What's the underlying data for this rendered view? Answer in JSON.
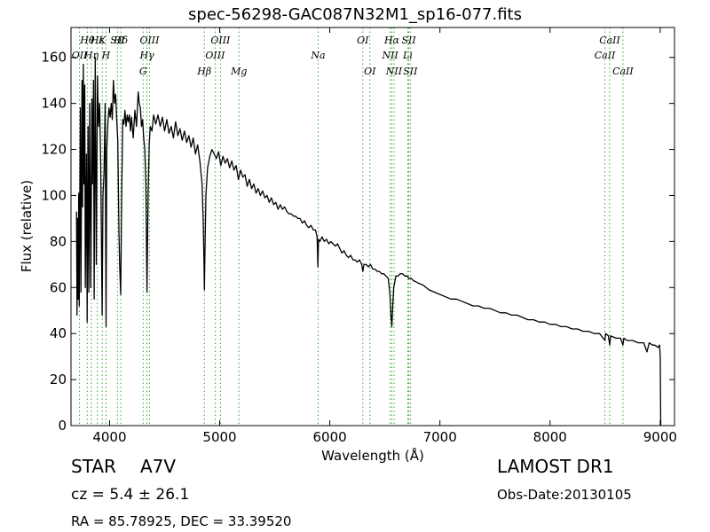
{
  "chart_data": {
    "type": "line",
    "title": "spec-56298-GAC087N32M1_sp16-077.fits",
    "xlabel": "Wavelength (Å)",
    "ylabel": "Flux (relative)",
    "xlim": [
      3650,
      9130
    ],
    "ylim": [
      0,
      173
    ],
    "xticks": [
      4000,
      5000,
      6000,
      7000,
      8000,
      9000
    ],
    "yticks": [
      0,
      20,
      40,
      60,
      80,
      100,
      120,
      140,
      160
    ],
    "grid": false,
    "line_color": "#000000",
    "marker_color": "#33aa33",
    "series": [
      {
        "points": [
          [
            3700,
            93
          ],
          [
            3705,
            48
          ],
          [
            3710,
            90
          ],
          [
            3715,
            55
          ],
          [
            3720,
            101
          ],
          [
            3725,
            52
          ],
          [
            3735,
            138
          ],
          [
            3740,
            58
          ],
          [
            3750,
            150
          ],
          [
            3755,
            95
          ],
          [
            3762,
            157
          ],
          [
            3768,
            105
          ],
          [
            3775,
            148
          ],
          [
            3780,
            60
          ],
          [
            3790,
            118
          ],
          [
            3797,
            45
          ],
          [
            3805,
            130
          ],
          [
            3812,
            58
          ],
          [
            3820,
            140
          ],
          [
            3830,
            60
          ],
          [
            3840,
            142
          ],
          [
            3845,
            105
          ],
          [
            3855,
            150
          ],
          [
            3860,
            55
          ],
          [
            3870,
            160
          ],
          [
            3880,
            70
          ],
          [
            3890,
            152
          ],
          [
            3900,
            130
          ],
          [
            3910,
            140
          ],
          [
            3920,
            113
          ],
          [
            3933,
            48
          ],
          [
            3940,
            100
          ],
          [
            3950,
            110
          ],
          [
            3960,
            140
          ],
          [
            3968,
            43
          ],
          [
            3975,
            120
          ],
          [
            3985,
            132
          ],
          [
            3995,
            138
          ],
          [
            4005,
            134
          ],
          [
            4015,
            140
          ],
          [
            4025,
            133
          ],
          [
            4035,
            150
          ],
          [
            4045,
            140
          ],
          [
            4055,
            144
          ],
          [
            4065,
            133
          ],
          [
            4075,
            124
          ],
          [
            4085,
            85
          ],
          [
            4092,
            70
          ],
          [
            4101,
            57
          ],
          [
            4110,
            100
          ],
          [
            4120,
            133
          ],
          [
            4130,
            131
          ],
          [
            4140,
            137
          ],
          [
            4150,
            130
          ],
          [
            4160,
            135
          ],
          [
            4170,
            132
          ],
          [
            4180,
            135
          ],
          [
            4190,
            128
          ],
          [
            4200,
            134
          ],
          [
            4215,
            125
          ],
          [
            4230,
            137
          ],
          [
            4245,
            130
          ],
          [
            4260,
            145
          ],
          [
            4270,
            140
          ],
          [
            4280,
            138
          ],
          [
            4290,
            130
          ],
          [
            4300,
            133
          ],
          [
            4310,
            125
          ],
          [
            4320,
            120
          ],
          [
            4330,
            105
          ],
          [
            4340,
            58
          ],
          [
            4350,
            100
          ],
          [
            4360,
            122
          ],
          [
            4370,
            130
          ],
          [
            4385,
            128
          ],
          [
            4400,
            135
          ],
          [
            4420,
            131
          ],
          [
            4440,
            135
          ],
          [
            4460,
            130
          ],
          [
            4480,
            134
          ],
          [
            4500,
            128
          ],
          [
            4520,
            133
          ],
          [
            4540,
            127
          ],
          [
            4560,
            130
          ],
          [
            4580,
            125
          ],
          [
            4600,
            132
          ],
          [
            4620,
            126
          ],
          [
            4640,
            129
          ],
          [
            4660,
            124
          ],
          [
            4680,
            128
          ],
          [
            4700,
            123
          ],
          [
            4720,
            126
          ],
          [
            4740,
            121
          ],
          [
            4760,
            125
          ],
          [
            4780,
            118
          ],
          [
            4800,
            122
          ],
          [
            4820,
            115
          ],
          [
            4840,
            105
          ],
          [
            4850,
            90
          ],
          [
            4858,
            70
          ],
          [
            4861,
            59
          ],
          [
            4865,
            72
          ],
          [
            4875,
            100
          ],
          [
            4890,
            112
          ],
          [
            4910,
            117
          ],
          [
            4930,
            120
          ],
          [
            4950,
            118
          ],
          [
            4970,
            116
          ],
          [
            4990,
            119
          ],
          [
            5010,
            113
          ],
          [
            5030,
            117
          ],
          [
            5050,
            114
          ],
          [
            5070,
            116
          ],
          [
            5090,
            112
          ],
          [
            5110,
            115
          ],
          [
            5130,
            111
          ],
          [
            5150,
            113
          ],
          [
            5170,
            107
          ],
          [
            5190,
            111
          ],
          [
            5210,
            108
          ],
          [
            5230,
            109
          ],
          [
            5250,
            104
          ],
          [
            5270,
            107
          ],
          [
            5290,
            103
          ],
          [
            5310,
            105
          ],
          [
            5330,
            101
          ],
          [
            5350,
            103
          ],
          [
            5370,
            100
          ],
          [
            5390,
            102
          ],
          [
            5410,
            99
          ],
          [
            5430,
            100
          ],
          [
            5450,
            97
          ],
          [
            5470,
            99
          ],
          [
            5490,
            96
          ],
          [
            5510,
            97
          ],
          [
            5530,
            94
          ],
          [
            5550,
            96
          ],
          [
            5570,
            94
          ],
          [
            5590,
            95
          ],
          [
            5610,
            93
          ],
          [
            5630,
            92
          ],
          [
            5650,
            92
          ],
          [
            5670,
            91
          ],
          [
            5690,
            91
          ],
          [
            5710,
            90
          ],
          [
            5730,
            90
          ],
          [
            5750,
            88
          ],
          [
            5770,
            89
          ],
          [
            5790,
            87
          ],
          [
            5810,
            86
          ],
          [
            5830,
            87
          ],
          [
            5850,
            85
          ],
          [
            5870,
            85
          ],
          [
            5885,
            82
          ],
          [
            5892,
            69
          ],
          [
            5898,
            81
          ],
          [
            5910,
            80
          ],
          [
            5930,
            82
          ],
          [
            5950,
            80
          ],
          [
            5970,
            81
          ],
          [
            5990,
            79
          ],
          [
            6010,
            80
          ],
          [
            6030,
            79
          ],
          [
            6050,
            78
          ],
          [
            6070,
            79
          ],
          [
            6090,
            77
          ],
          [
            6110,
            75
          ],
          [
            6130,
            76
          ],
          [
            6150,
            74
          ],
          [
            6170,
            73
          ],
          [
            6190,
            74
          ],
          [
            6210,
            72
          ],
          [
            6230,
            72
          ],
          [
            6250,
            71
          ],
          [
            6270,
            72
          ],
          [
            6290,
            70
          ],
          [
            6300,
            67
          ],
          [
            6310,
            70
          ],
          [
            6330,
            70
          ],
          [
            6350,
            69
          ],
          [
            6370,
            70
          ],
          [
            6390,
            68
          ],
          [
            6410,
            68
          ],
          [
            6430,
            67
          ],
          [
            6450,
            67
          ],
          [
            6470,
            66
          ],
          [
            6490,
            66
          ],
          [
            6510,
            65
          ],
          [
            6530,
            64
          ],
          [
            6545,
            58
          ],
          [
            6555,
            48
          ],
          [
            6563,
            43
          ],
          [
            6570,
            50
          ],
          [
            6580,
            60
          ],
          [
            6600,
            65
          ],
          [
            6620,
            65
          ],
          [
            6640,
            66
          ],
          [
            6660,
            66
          ],
          [
            6680,
            65
          ],
          [
            6700,
            65
          ],
          [
            6720,
            64
          ],
          [
            6740,
            64
          ],
          [
            6760,
            63
          ],
          [
            6800,
            62
          ],
          [
            6850,
            61
          ],
          [
            6900,
            59
          ],
          [
            6950,
            58
          ],
          [
            7000,
            57
          ],
          [
            7050,
            56
          ],
          [
            7100,
            55
          ],
          [
            7150,
            55
          ],
          [
            7200,
            54
          ],
          [
            7250,
            53
          ],
          [
            7300,
            52
          ],
          [
            7350,
            52
          ],
          [
            7400,
            51
          ],
          [
            7450,
            51
          ],
          [
            7500,
            50
          ],
          [
            7550,
            49
          ],
          [
            7600,
            49
          ],
          [
            7650,
            48
          ],
          [
            7700,
            48
          ],
          [
            7750,
            47
          ],
          [
            7800,
            46
          ],
          [
            7850,
            46
          ],
          [
            7900,
            45
          ],
          [
            7950,
            45
          ],
          [
            8000,
            44
          ],
          [
            8050,
            44
          ],
          [
            8100,
            43
          ],
          [
            8150,
            43
          ],
          [
            8200,
            42
          ],
          [
            8250,
            42
          ],
          [
            8300,
            41
          ],
          [
            8350,
            41
          ],
          [
            8400,
            40
          ],
          [
            8450,
            40
          ],
          [
            8498,
            37
          ],
          [
            8505,
            40
          ],
          [
            8530,
            39
          ],
          [
            8542,
            35
          ],
          [
            8550,
            39
          ],
          [
            8600,
            38
          ],
          [
            8640,
            38
          ],
          [
            8662,
            35
          ],
          [
            8670,
            38
          ],
          [
            8700,
            37
          ],
          [
            8750,
            37
          ],
          [
            8800,
            36
          ],
          [
            8850,
            36
          ],
          [
            8880,
            32
          ],
          [
            8900,
            36
          ],
          [
            8930,
            35
          ],
          [
            8950,
            35
          ],
          [
            8980,
            34
          ],
          [
            8995,
            35
          ],
          [
            9000,
            30
          ],
          [
            9005,
            0
          ]
        ]
      }
    ],
    "line_markers": [
      {
        "label": "OII",
        "wl": 3727,
        "row": 2
      },
      {
        "label": "Hθ",
        "wl": 3798,
        "row": 1
      },
      {
        "label": "Hη",
        "wl": 3835,
        "row": 2
      },
      {
        "label": "Hε",
        "wl": 3889,
        "row": 1
      },
      {
        "label": "K",
        "wl": 3934,
        "row": 1
      },
      {
        "label": "H",
        "wl": 3968,
        "row": 2
      },
      {
        "label": "SII",
        "wl": 4072,
        "row": 1
      },
      {
        "label": "Hδ",
        "wl": 4102,
        "row": 1
      },
      {
        "label": "G",
        "wl": 4305,
        "row": 3
      },
      {
        "label": "Hγ",
        "wl": 4340,
        "row": 2
      },
      {
        "label": "OIII",
        "wl": 4363,
        "row": 1
      },
      {
        "label": "Hβ",
        "wl": 4861,
        "row": 3
      },
      {
        "label": "OIII",
        "wl": 4959,
        "row": 2
      },
      {
        "label": "OIII",
        "wl": 5007,
        "row": 1
      },
      {
        "label": "Mg",
        "wl": 5175,
        "row": 3
      },
      {
        "label": "Na",
        "wl": 5894,
        "row": 2
      },
      {
        "label": "OI",
        "wl": 6300,
        "row": 1
      },
      {
        "label": "OI",
        "wl": 6364,
        "row": 3
      },
      {
        "label": "NII",
        "wl": 6548,
        "row": 2
      },
      {
        "label": "Hα",
        "wl": 6563,
        "row": 1
      },
      {
        "label": "NII",
        "wl": 6583,
        "row": 3
      },
      {
        "label": "SII",
        "wl": 6717,
        "row": 1
      },
      {
        "label": "Li",
        "wl": 6708,
        "row": 2
      },
      {
        "label": "SII",
        "wl": 6731,
        "row": 3
      },
      {
        "label": "CaII",
        "wl": 8498,
        "row": 2
      },
      {
        "label": "CaII",
        "wl": 8542,
        "row": 1
      },
      {
        "label": "CaII",
        "wl": 8662,
        "row": 3
      }
    ]
  },
  "footer": {
    "class_label": "STAR",
    "subclass_label": "A7V",
    "cz": "cz = 5.4 ± 26.1",
    "coords": "RA = 85.78925, DEC = 33.39520",
    "survey": "LAMOST DR1",
    "obs_date": "Obs-Date:20130105"
  }
}
